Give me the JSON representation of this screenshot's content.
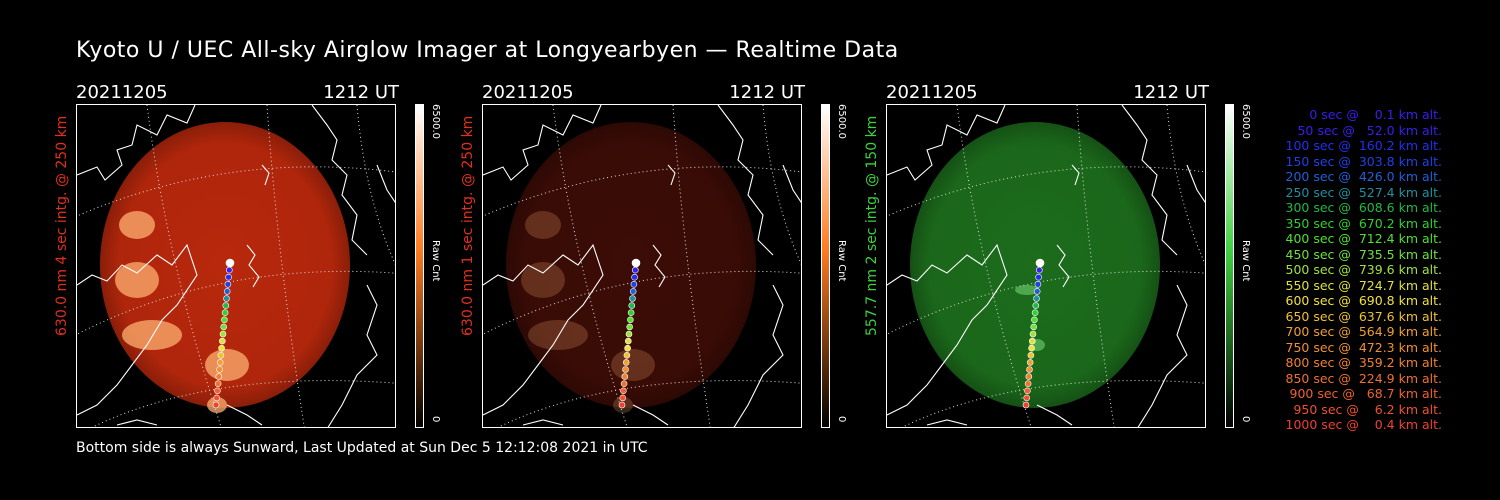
{
  "title": "Kyoto U / UEC All-sky Airglow Imager at Longyearbyen — Realtime Data",
  "footer": "Bottom side is always Sunward, Last Updated at Sun Dec  5 12:12:08 2021 in UTC",
  "panels": [
    {
      "date": "20211205",
      "time": "1212 UT",
      "ylabel": "630.0 nm 4 sec intg. @ 250 km",
      "label_color": "#e0301e",
      "cbar_max": "6500.0",
      "cbar_min": "0",
      "cbar_label": "Raw Cnt",
      "cbar_top": "#ffffff",
      "cbar_mid": "#ff7b20",
      "cbar_bottom": "#000000",
      "image_color": "#b8280c",
      "image_intensity": 1.0
    },
    {
      "date": "20211205",
      "time": "1212 UT",
      "ylabel": "630.0 nm 1 sec intg. @ 250 km",
      "label_color": "#e0301e",
      "cbar_max": "6500.0",
      "cbar_min": "0",
      "cbar_label": "Raw Cnt",
      "cbar_top": "#ffffff",
      "cbar_mid": "#ff7b20",
      "cbar_bottom": "#000000",
      "image_color": "#3c0c06",
      "image_intensity": 0.3
    },
    {
      "date": "20211205",
      "time": "1212 UT",
      "ylabel": "557.7 nm 2 sec intg. @ 150 km",
      "label_color": "#3cd23c",
      "cbar_max": "6500.0",
      "cbar_min": "0",
      "cbar_label": "Raw Cnt",
      "cbar_top": "#ffffff",
      "cbar_mid": "#40d040",
      "cbar_bottom": "#000000",
      "image_color": "#1c6c1c",
      "image_intensity": 0.7
    }
  ],
  "legend": [
    {
      "text": "   0 sec @    0.1 km alt.",
      "color": "#3a1ef0"
    },
    {
      "text": "  50 sec @   52.0 km alt.",
      "color": "#3a1ef0"
    },
    {
      "text": " 100 sec @  160.2 km alt.",
      "color": "#2030f0"
    },
    {
      "text": " 150 sec @  303.8 km alt.",
      "color": "#2040e8"
    },
    {
      "text": " 200 sec @  426.0 km alt.",
      "color": "#2060d8"
    },
    {
      "text": " 250 sec @  527.4 km alt.",
      "color": "#2090a0"
    },
    {
      "text": " 300 sec @  608.6 km alt.",
      "color": "#20b848"
    },
    {
      "text": " 350 sec @  670.2 km alt.",
      "color": "#30d030"
    },
    {
      "text": " 400 sec @  712.4 km alt.",
      "color": "#50e030"
    },
    {
      "text": " 450 sec @  735.5 km alt.",
      "color": "#70e040"
    },
    {
      "text": " 500 sec @  739.6 km alt.",
      "color": "#a0e040"
    },
    {
      "text": " 550 sec @  724.7 km alt.",
      "color": "#e0e040"
    },
    {
      "text": " 600 sec @  690.8 km alt.",
      "color": "#f0e040"
    },
    {
      "text": " 650 sec @  637.6 km alt.",
      "color": "#f0c030"
    },
    {
      "text": " 700 sec @  564.9 km alt.",
      "color": "#f0a030"
    },
    {
      "text": " 750 sec @  472.3 km alt.",
      "color": "#f09030"
    },
    {
      "text": " 800 sec @  359.2 km alt.",
      "color": "#f08030"
    },
    {
      "text": " 850 sec @  224.9 km alt.",
      "color": "#f07030"
    },
    {
      "text": " 900 sec @   68.7 km alt.",
      "color": "#f06030"
    },
    {
      "text": " 950 sec @    6.2 km alt.",
      "color": "#f05030"
    },
    {
      "text": "1000 sec @    0.4 km alt.",
      "color": "#f04030"
    }
  ]
}
